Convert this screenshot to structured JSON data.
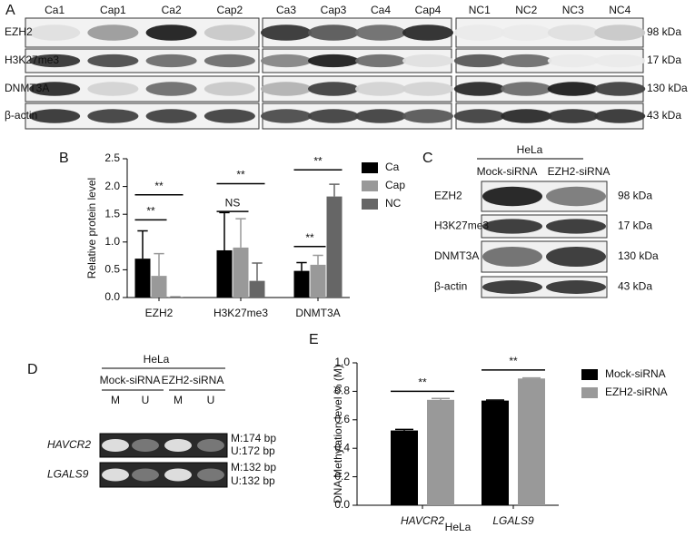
{
  "blot_a": {
    "label": "A",
    "lanes": [
      "Ca1",
      "Cap1",
      "Ca2",
      "Cap2",
      "Ca3",
      "Cap3",
      "Ca4",
      "Cap4",
      "NC1",
      "NC2",
      "NC3",
      "NC4"
    ],
    "rows": [
      {
        "protein": "EZH2",
        "size": "98 kDa"
      },
      {
        "protein": "H3K27me3",
        "size": "17 kDa"
      },
      {
        "protein": "DNMT3A",
        "size": "130 kDa"
      },
      {
        "protein": "β-actin",
        "size": "43 kDa"
      }
    ]
  },
  "chart_data": [
    {
      "type": "bar",
      "panel_label": "B",
      "ylabel": "Relative protein level",
      "categories": [
        "EZH2",
        "H3K27me3",
        "DNMT3A"
      ],
      "series": [
        {
          "name": "Ca",
          "color": "#000000",
          "values": [
            0.7,
            0.85,
            0.48
          ],
          "errors": [
            0.5,
            0.68,
            0.15
          ]
        },
        {
          "name": "Cap",
          "color": "#999999",
          "values": [
            0.39,
            0.9,
            0.59
          ],
          "errors": [
            0.4,
            0.52,
            0.17
          ]
        },
        {
          "name": "NC",
          "color": "#666666",
          "values": [
            0.01,
            0.3,
            1.82
          ],
          "errors": [
            0,
            0.32,
            0.22
          ]
        }
      ],
      "ylim": [
        0,
        2.5
      ],
      "yticks": [
        {
          "value": 0,
          "label": "0.0"
        },
        {
          "value": 0.5,
          "label": "0.5"
        },
        {
          "value": 1,
          "label": "1.0"
        },
        {
          "value": 1.5,
          "label": "1.5"
        },
        {
          "value": 2,
          "label": "2.0"
        },
        {
          "value": 2.5,
          "label": "2.5"
        }
      ],
      "annotations": [
        "**",
        "**",
        "**",
        "NS",
        "**",
        "**"
      ],
      "legend": "right"
    },
    {
      "type": "bar",
      "panel_label": "E",
      "ylabel": "DNA Methylation level % (M)",
      "xlabel": "HeLa",
      "categories": [
        "HAVCR2",
        "LGALS9"
      ],
      "series": [
        {
          "name": "Mock-siRNA",
          "color": "#000000",
          "values": [
            0.525,
            0.735
          ],
          "errors": [
            0.008,
            0.004
          ]
        },
        {
          "name": "EZH2-siRNA",
          "color": "#999999",
          "values": [
            0.74,
            0.89
          ],
          "errors": [
            0.01,
            0.004
          ]
        }
      ],
      "ylim": [
        0,
        1
      ],
      "yticks": [
        {
          "value": 0,
          "label": "0.0"
        },
        {
          "value": 0.2,
          "label": "0.2"
        },
        {
          "value": 0.4,
          "label": "0.4"
        },
        {
          "value": 0.6,
          "label": "0.6"
        },
        {
          "value": 0.8,
          "label": "0.8"
        },
        {
          "value": 1,
          "label": "1.0"
        }
      ],
      "annotations": [
        "**",
        "**"
      ],
      "legend": "right"
    }
  ],
  "blot_c": {
    "label": "C",
    "cell_line": "HeLa",
    "groups": [
      "Mock-siRNA",
      "EZH2-siRNA"
    ],
    "rows": [
      {
        "protein": "EZH2",
        "size": "98 kDa"
      },
      {
        "protein": "H3K27me3",
        "size": "17 kDa"
      },
      {
        "protein": "DNMT3A",
        "size": "130 kDa"
      },
      {
        "protein": "β-actin",
        "size": "43 kDa"
      }
    ]
  },
  "gel_d": {
    "label": "D",
    "cell_line": "HeLa",
    "groups": [
      "Mock-siRNA",
      "EZH2-siRNA"
    ],
    "lanes": [
      "M",
      "U",
      "M",
      "U"
    ],
    "rows": [
      {
        "gene": "HAVCR2",
        "sizes": [
          "M:174 bp",
          "U:172 bp"
        ]
      },
      {
        "gene": "LGALS9",
        "sizes": [
          "M:132 bp",
          "U:132 bp"
        ]
      }
    ]
  }
}
